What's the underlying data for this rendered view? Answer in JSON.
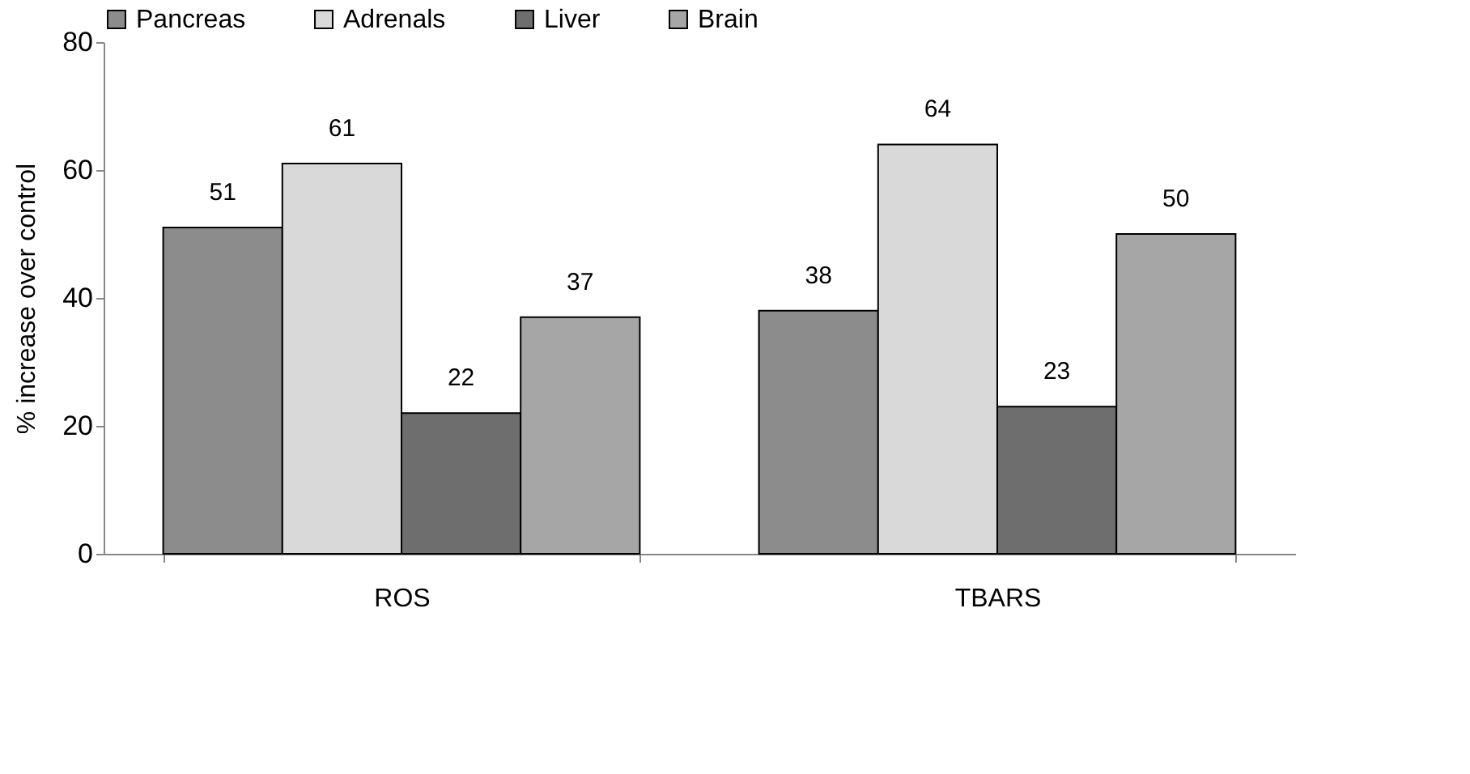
{
  "chart_data": {
    "type": "bar",
    "ylabel": "% increase over control",
    "categories": [
      "ROS",
      "TBARS"
    ],
    "series": [
      {
        "name": "Pancreas",
        "color": "#8c8c8c",
        "values": [
          51,
          38
        ]
      },
      {
        "name": "Adrenals",
        "color": "#d9d9d9",
        "values": [
          61,
          64
        ]
      },
      {
        "name": "Liver",
        "color": "#6e6e6e",
        "values": [
          22,
          23
        ]
      },
      {
        "name": "Brain",
        "color": "#a6a6a6",
        "values": [
          37,
          50
        ]
      }
    ],
    "ylim": [
      0,
      80
    ],
    "yticks": [
      0,
      20,
      40,
      60,
      80
    ],
    "grid": false,
    "legend": "top",
    "data_labels": true
  }
}
